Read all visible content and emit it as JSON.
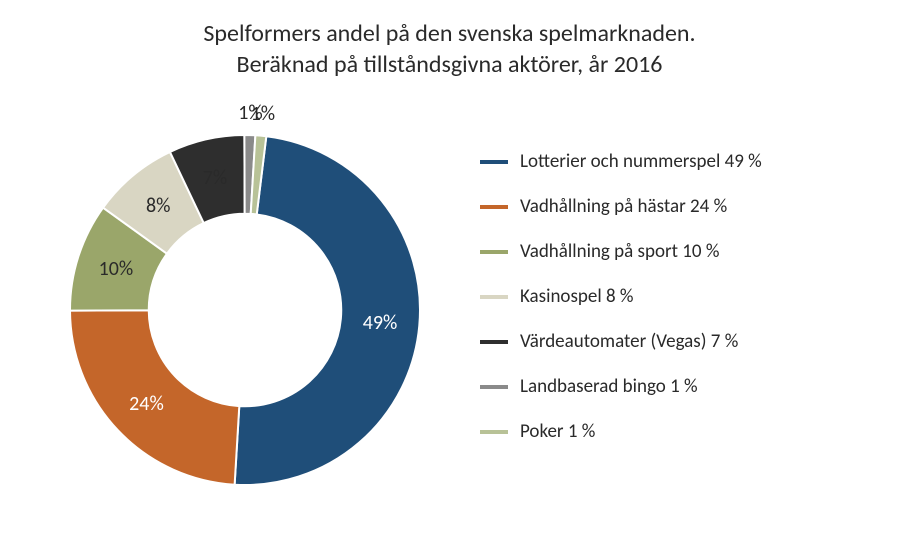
{
  "title_line1": "Spelformers andel på den svenska spelmarknaden.",
  "title_line2": "Beräknad på tillståndsgivna aktörer, år 2016",
  "chart": {
    "type": "donut",
    "inner_radius_ratio": 0.55,
    "background_color": "#ffffff",
    "start_angle_deg": 7,
    "slices": [
      {
        "label": "Lotterier och nummerspel 49 %",
        "value": 49,
        "color": "#1f4e79",
        "pct_label": "49%"
      },
      {
        "label": "Vadhållning på hästar 24 %",
        "value": 24,
        "color": "#c4662a",
        "pct_label": "24%"
      },
      {
        "label": "Vadhållning på sport 10 %",
        "value": 10,
        "color": "#9aa66a",
        "pct_label": "10%"
      },
      {
        "label": "Kasinospel 8 %",
        "value": 8,
        "color": "#d9d6c3",
        "pct_label": "8%"
      },
      {
        "label": "Värdeautomater (Vegas) 7 %",
        "value": 7,
        "color": "#2e2e2e",
        "pct_label": "7%"
      },
      {
        "label": "Landbaserad bingo 1 %",
        "value": 1,
        "color": "#8a8a8a",
        "pct_label": "1%"
      },
      {
        "label": "Poker 1 %",
        "value": 1,
        "color": "#b8c297",
        "pct_label": "1%"
      }
    ]
  }
}
